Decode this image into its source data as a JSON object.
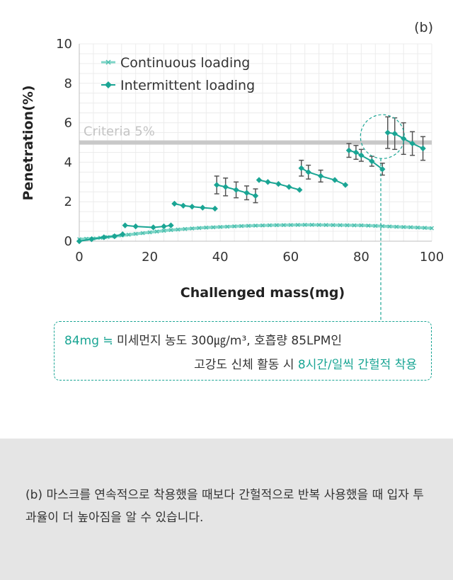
{
  "chart_data": {
    "type": "line",
    "panel_label": "(b)",
    "title": "",
    "xlabel": "Challenged mass(mg)",
    "ylabel": "Penetration(%)",
    "xlim": [
      0,
      100
    ],
    "ylim": [
      0,
      10
    ],
    "x_ticks": [
      "0",
      "20",
      "40",
      "60",
      "80",
      "100"
    ],
    "y_ticks": [
      "0",
      "2",
      "4",
      "6",
      "8",
      "10"
    ],
    "grid": true,
    "legend": {
      "position": "top-left",
      "entries": [
        "Continuous loading",
        "Intermittent loading"
      ]
    },
    "reference_line": {
      "y": 5,
      "label": "Criteria 5%",
      "color": "#c8c8c8"
    },
    "series": [
      {
        "name": "Continuous loading",
        "marker": "x",
        "color": "#7fd6c8",
        "x": [
          0,
          5,
          10,
          15,
          20,
          25,
          30,
          35,
          40,
          45,
          50,
          55,
          60,
          65,
          70,
          75,
          80,
          85,
          90,
          95,
          100
        ],
        "y": [
          0.1,
          0.15,
          0.25,
          0.35,
          0.45,
          0.55,
          0.62,
          0.68,
          0.72,
          0.76,
          0.79,
          0.81,
          0.82,
          0.83,
          0.82,
          0.81,
          0.8,
          0.77,
          0.73,
          0.7,
          0.66
        ]
      },
      {
        "name": "Intermittent loading",
        "marker": "diamond",
        "color": "#1aa594",
        "segments": [
          {
            "x": [
              0,
              3.5,
              7,
              10,
              12.3
            ],
            "y": [
              0.0,
              0.1,
              0.2,
              0.25,
              0.35
            ]
          },
          {
            "x": [
              13,
              16,
              21,
              24,
              26
            ],
            "y": [
              0.8,
              0.75,
              0.7,
              0.75,
              0.8
            ]
          },
          {
            "x": [
              27,
              29.5,
              32,
              35,
              38.5
            ],
            "y": [
              1.9,
              1.8,
              1.75,
              1.7,
              1.65
            ]
          },
          {
            "x": [
              39,
              41.5,
              44.5,
              47.5,
              50
            ],
            "y": [
              2.85,
              2.75,
              2.6,
              2.45,
              2.3
            ]
          },
          {
            "x": [
              51,
              53.5,
              56.5,
              59.5,
              62.5
            ],
            "y": [
              3.1,
              3.0,
              2.9,
              2.75,
              2.6
            ]
          },
          {
            "x": [
              63,
              65,
              68.5,
              72.5,
              75.5
            ],
            "y": [
              3.7,
              3.5,
              3.3,
              3.1,
              2.85
            ]
          },
          {
            "x": [
              76.5,
              78.5,
              80,
              83,
              86
            ],
            "y": [
              4.6,
              4.5,
              4.35,
              4.05,
              3.65
            ]
          },
          {
            "x": [
              87.5,
              89.5,
              92,
              94.5,
              97.5
            ],
            "y": [
              5.5,
              5.45,
              5.2,
              4.95,
              4.7
            ]
          }
        ],
        "error_bars": [
          {
            "x": 39,
            "y": 2.85,
            "err": 0.45
          },
          {
            "x": 41.5,
            "y": 2.75,
            "err": 0.45
          },
          {
            "x": 44.5,
            "y": 2.6,
            "err": 0.4
          },
          {
            "x": 47.5,
            "y": 2.45,
            "err": 0.35
          },
          {
            "x": 50,
            "y": 2.3,
            "err": 0.35
          },
          {
            "x": 63,
            "y": 3.7,
            "err": 0.4
          },
          {
            "x": 65,
            "y": 3.5,
            "err": 0.35
          },
          {
            "x": 68.5,
            "y": 3.3,
            "err": 0.3
          },
          {
            "x": 76.5,
            "y": 4.6,
            "err": 0.35
          },
          {
            "x": 78.5,
            "y": 4.5,
            "err": 0.35
          },
          {
            "x": 80,
            "y": 4.35,
            "err": 0.3
          },
          {
            "x": 83,
            "y": 4.05,
            "err": 0.25
          },
          {
            "x": 86,
            "y": 3.65,
            "err": 0.3
          },
          {
            "x": 87.5,
            "y": 5.5,
            "err": 0.8
          },
          {
            "x": 89.5,
            "y": 5.45,
            "err": 0.8
          },
          {
            "x": 92,
            "y": 5.2,
            "err": 0.8
          },
          {
            "x": 94.5,
            "y": 4.95,
            "err": 0.6
          },
          {
            "x": 97.5,
            "y": 4.7,
            "err": 0.6
          }
        ]
      }
    ],
    "highlight": {
      "x": 86,
      "y": 5.3,
      "label": "84mg"
    }
  },
  "callout": {
    "line1_accent": "84mg ≒",
    "line1_rest": " 미세먼지 농도 300㎍/m³,  호흡량 85LPM인",
    "line2_plain": "고강도 신체 활동 시 ",
    "line2_accent": "8시간/일씩 간헐적 착용"
  },
  "caption": {
    "text": "(b) 마스크를 연속적으로 착용했을 때보다 간헐적으로 반복 사용했을 때 입자 투과율이 더 높아짐을 알 수 있습니다."
  }
}
